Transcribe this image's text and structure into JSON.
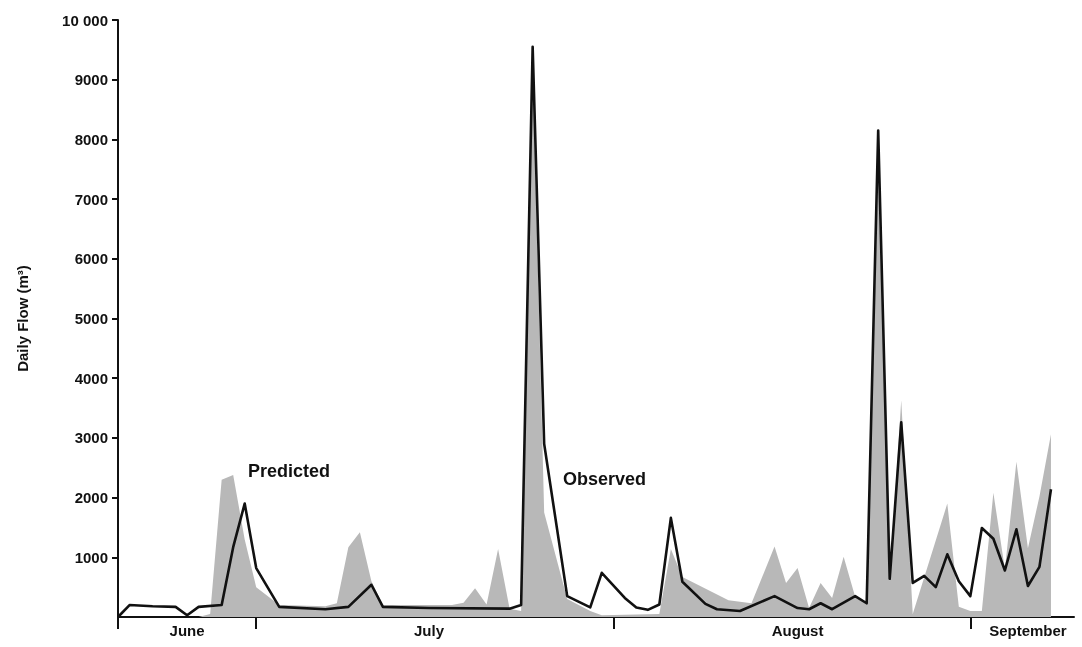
{
  "chart_data": {
    "type": "line",
    "ylabel": "Daily Flow (m³)",
    "xlim": [
      "--06-19",
      "--09-10"
    ],
    "xticks": [
      {
        "value": "--06-19",
        "label": null
      },
      {
        "value": "--06-25",
        "label": "June"
      },
      {
        "value": "--07-01",
        "label": null
      },
      {
        "value": "--07-16",
        "label": "July"
      },
      {
        "value": "--08-01",
        "label": null
      },
      {
        "value": "--08-17",
        "label": "August"
      },
      {
        "value": "--09-01",
        "label": null
      },
      {
        "value": "--09-06",
        "label": "September"
      }
    ],
    "ylim": [
      0,
      10000
    ],
    "yticks": [
      1000,
      2000,
      3000,
      4000,
      5000,
      6000,
      7000,
      8000,
      9000,
      {
        "value": 10000,
        "label": "10 000"
      }
    ],
    "grid": false,
    "series": [
      {
        "name": "Predicted",
        "type": "area",
        "color": "#b8b8b8",
        "x": [
          "--06-26",
          "--06-27",
          "--06-28",
          "--06-29",
          "--06-30",
          "--07-01",
          "--07-03",
          "--07-07",
          "--07-08",
          "--07-09",
          "--07-10",
          "--07-11",
          "--07-12",
          "--07-18",
          "--07-19",
          "--07-20",
          "--07-21",
          "--07-22",
          "--07-23",
          "--07-24",
          "--07-25",
          "--07-26",
          "--07-28",
          "--07-30",
          "--07-31",
          "--08-05",
          "--08-06",
          "--08-07",
          "--08-11",
          "--08-13",
          "--08-15",
          "--08-16",
          "--08-17",
          "--08-18",
          "--08-19",
          "--08-20",
          "--08-21",
          "--08-22",
          "--08-23",
          "--08-24",
          "--08-25",
          "--08-26",
          "--08-27",
          "--08-30",
          "--08-31",
          "--09-01",
          "--09-02",
          "--09-03",
          "--09-04",
          "--09-05",
          "--09-06",
          "--09-07",
          "--09-08"
        ],
        "values": [
          0,
          50,
          2300,
          2380,
          1300,
          500,
          200,
          180,
          230,
          1170,
          1420,
          600,
          200,
          200,
          240,
          480,
          210,
          1140,
          140,
          100,
          9300,
          1750,
          300,
          100,
          30,
          50,
          1140,
          670,
          280,
          230,
          1180,
          570,
          820,
          150,
          570,
          320,
          1010,
          340,
          230,
          7500,
          600,
          3630,
          50,
          1900,
          170,
          100,
          100,
          2080,
          800,
          2600,
          1150,
          2020,
          3060
        ]
      },
      {
        "name": "Observed",
        "type": "line",
        "color": "#111111",
        "x": [
          "--06-19",
          "--06-20",
          "--06-22",
          "--06-24",
          "--06-25",
          "--06-26",
          "--06-28",
          "--06-29",
          "--06-30",
          "--07-01",
          "--07-03",
          "--07-07",
          "--07-09",
          "--07-11",
          "--07-12",
          "--07-16",
          "--07-23",
          "--07-24",
          "--07-25",
          "--07-26",
          "--07-28",
          "--07-30",
          "--07-31",
          "--08-02",
          "--08-03",
          "--08-04",
          "--08-05",
          "--08-06",
          "--08-07",
          "--08-09",
          "--08-10",
          "--08-12",
          "--08-15",
          "--08-17",
          "--08-18",
          "--08-19",
          "--08-20",
          "--08-22",
          "--08-23",
          "--08-24",
          "--08-25",
          "--08-26",
          "--08-27",
          "--08-28",
          "--08-29",
          "--08-30",
          "--08-31",
          "--09-01",
          "--09-02",
          "--09-03",
          "--09-04",
          "--09-05",
          "--09-06",
          "--09-07",
          "--09-08"
        ],
        "values": [
          0,
          200,
          180,
          170,
          30,
          170,
          200,
          1170,
          1900,
          820,
          170,
          130,
          170,
          540,
          170,
          150,
          140,
          200,
          9550,
          2900,
          350,
          160,
          740,
          320,
          160,
          120,
          210,
          1660,
          590,
          220,
          130,
          100,
          350,
          150,
          130,
          230,
          130,
          350,
          230,
          8150,
          640,
          3260,
          570,
          690,
          500,
          1050,
          600,
          350,
          1490,
          1310,
          780,
          1470,
          520,
          840,
          2140
        ]
      }
    ]
  }
}
